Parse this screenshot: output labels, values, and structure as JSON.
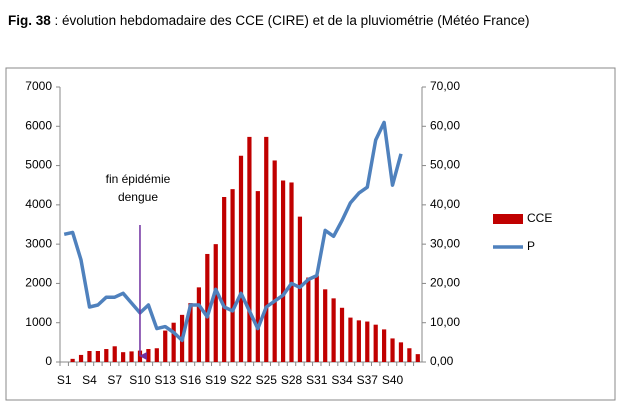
{
  "caption": {
    "label": "Fig. 38",
    "text": ": évolution hebdomadaire des CCE (CIRE) et de la pluviométrie (Météo France)"
  },
  "chart_data": {
    "type": "bar-line",
    "categories": [
      "S1",
      null,
      null,
      "S4",
      null,
      null,
      "S7",
      null,
      null,
      "S10",
      null,
      null,
      "S13",
      null,
      null,
      "S16",
      null,
      null,
      "S19",
      null,
      null,
      "S22",
      null,
      null,
      "S25",
      null,
      null,
      "S28",
      null,
      null,
      "S31",
      null,
      null,
      "S34",
      null,
      null,
      "S37",
      null,
      null,
      "S40",
      null,
      null,
      null
    ],
    "series": [
      {
        "name": "CCE",
        "type": "bar",
        "color": "#c00000",
        "values": [
          0,
          80,
          180,
          280,
          280,
          330,
          400,
          250,
          270,
          290,
          330,
          350,
          800,
          1000,
          1200,
          1500,
          1900,
          2750,
          3000,
          4200,
          4400,
          5250,
          5730,
          4350,
          5730,
          5130,
          4620,
          4570,
          3700,
          2150,
          2200,
          1850,
          1620,
          1380,
          1130,
          1060,
          1030,
          950,
          830,
          600,
          500,
          350,
          200
        ]
      },
      {
        "name": "P",
        "type": "line",
        "axis": "y2",
        "color": "#4f81bd",
        "values": [
          32.5,
          33,
          26,
          14,
          14.5,
          16.5,
          16.5,
          17.5,
          15,
          12.5,
          14.5,
          8.5,
          9,
          7.5,
          5.5,
          14.5,
          14.5,
          11.5,
          18.5,
          14,
          13,
          17.5,
          13,
          8.5,
          14,
          15.5,
          17,
          20,
          19,
          21,
          22,
          33.5,
          32,
          36,
          40.5,
          43,
          44.5,
          56.5,
          61,
          45,
          53,
          null,
          null
        ]
      }
    ],
    "ylim": [
      0,
      7000
    ],
    "yticks": [
      0,
      1000,
      2000,
      3000,
      4000,
      5000,
      6000,
      7000
    ],
    "y2lim": [
      0,
      70
    ],
    "y2ticks": [
      {
        "value": 0,
        "label": "0,00"
      },
      {
        "value": 10,
        "label": "10,00"
      },
      {
        "value": 20,
        "label": "20,00"
      },
      {
        "value": 30,
        "label": "30,00"
      },
      {
        "value": 40,
        "label": "40,00"
      },
      {
        "value": 50,
        "label": "50,00"
      },
      {
        "value": 60,
        "label": "60,00"
      },
      {
        "value": 70,
        "label": "70,00"
      }
    ],
    "annotation": {
      "lines": [
        "fin épidémie",
        "dengue"
      ],
      "category_index": 9
    },
    "legend": "right",
    "grid": false
  }
}
